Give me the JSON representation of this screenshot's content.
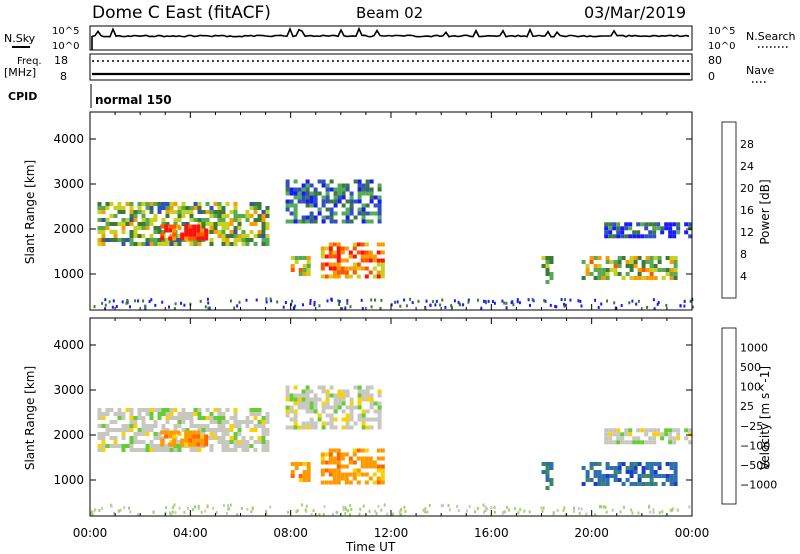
{
  "header": {
    "station": "Dome C East (fitACF)",
    "beam": "Beam 02",
    "date": "03/Mar/2019"
  },
  "top_panels": {
    "nsky_label": "N.Sky",
    "nsky_ticks": [
      "10^5",
      "10^0"
    ],
    "nsearch_label": "N.Search",
    "nsearch_ticks": [
      "10^5",
      "10^0"
    ],
    "freq_label_1": "Freq.",
    "freq_label_2": "[MHz]",
    "freq_ticks": [
      "18",
      "8"
    ],
    "nave_label": "Nave",
    "nave_ticks": [
      "80",
      "0"
    ],
    "cpid_label": "CPID",
    "cpid_value": "normal 150"
  },
  "chart_data": [
    {
      "type": "heatmap",
      "panel": "power",
      "title": "",
      "xlabel": "Time UT",
      "ylabel": "Slant Range [km]",
      "y_ticks": [
        "1000",
        "2000",
        "3000",
        "4000"
      ],
      "ylim": [
        200,
        4600
      ],
      "x_ticks": [
        "00:00",
        "04:00",
        "08:00",
        "12:00",
        "16:00",
        "20:00",
        "00:00"
      ],
      "xlim_hours": [
        0,
        24
      ],
      "colorbar_label": "Power [dB]",
      "colorbar_ticks": [
        "4",
        "8",
        "12",
        "16",
        "20",
        "24",
        "28"
      ],
      "colorbar_colors": [
        "#1a1aff",
        "#2f52c2",
        "#3b7a3b",
        "#55aa55",
        "#c8d020",
        "#ff9900",
        "#ff5500",
        "#ff1010"
      ],
      "clim": [
        0,
        30
      ],
      "echo_regions": [
        {
          "t0": 0.3,
          "t1": 7.0,
          "r0": 1700,
          "r1": 2600,
          "level": 14
        },
        {
          "t0": 2.8,
          "t1": 4.6,
          "r0": 1800,
          "r1": 2100,
          "level": 26
        },
        {
          "t0": 7.8,
          "t1": 11.5,
          "r0": 2200,
          "r1": 3100,
          "level": 8
        },
        {
          "t0": 8.0,
          "t1": 8.7,
          "r0": 1000,
          "r1": 1400,
          "level": 18
        },
        {
          "t0": 9.2,
          "t1": 11.6,
          "r0": 900,
          "r1": 1700,
          "level": 22
        },
        {
          "t0": 18.0,
          "t1": 18.4,
          "r0": 850,
          "r1": 1400,
          "level": 16
        },
        {
          "t0": 19.6,
          "t1": 23.3,
          "r0": 950,
          "r1": 1400,
          "level": 16
        },
        {
          "t0": 20.5,
          "t1": 24.0,
          "r0": 1800,
          "r1": 2150,
          "level": 6
        }
      ]
    },
    {
      "type": "heatmap",
      "panel": "velocity",
      "title": "",
      "xlabel": "Time UT",
      "ylabel": "Slant Range [km]",
      "y_ticks": [
        "1000",
        "2000",
        "3000",
        "4000"
      ],
      "ylim": [
        200,
        4600
      ],
      "x_ticks": [
        "00:00",
        "04:00",
        "08:00",
        "12:00",
        "16:00",
        "20:00",
        "00:00"
      ],
      "xlim_hours": [
        0,
        24
      ],
      "colorbar_label": "Velocity [m s^-1]",
      "colorbar_ticks": [
        "1000",
        "500",
        "100",
        "25",
        "−25",
        "−100",
        "−500",
        "−1000"
      ],
      "colorbar_colors": [
        "#1a3ec8",
        "#2e6fb0",
        "#3b8a5a",
        "#66cc33",
        "#c8c8c0",
        "#ffd000",
        "#ff9900",
        "#ff6600",
        "#ff1010"
      ],
      "echo_regions": [
        {
          "t0": 0.3,
          "t1": 7.0,
          "r0": 1700,
          "r1": 2600,
          "vclass": "grey"
        },
        {
          "t0": 2.8,
          "t1": 4.6,
          "r0": 1800,
          "r1": 2100,
          "vclass": "orange"
        },
        {
          "t0": 7.8,
          "t1": 11.5,
          "r0": 2200,
          "r1": 3100,
          "vclass": "grey"
        },
        {
          "t0": 8.0,
          "t1": 8.7,
          "r0": 1000,
          "r1": 1400,
          "vclass": "orange"
        },
        {
          "t0": 9.2,
          "t1": 11.6,
          "r0": 900,
          "r1": 1700,
          "vclass": "orange"
        },
        {
          "t0": 18.0,
          "t1": 18.4,
          "r0": 850,
          "r1": 1400,
          "vclass": "green"
        },
        {
          "t0": 19.6,
          "t1": 23.3,
          "r0": 950,
          "r1": 1400,
          "vclass": "blue"
        },
        {
          "t0": 20.5,
          "t1": 24.0,
          "r0": 1800,
          "r1": 2150,
          "vclass": "grey"
        }
      ]
    }
  ]
}
